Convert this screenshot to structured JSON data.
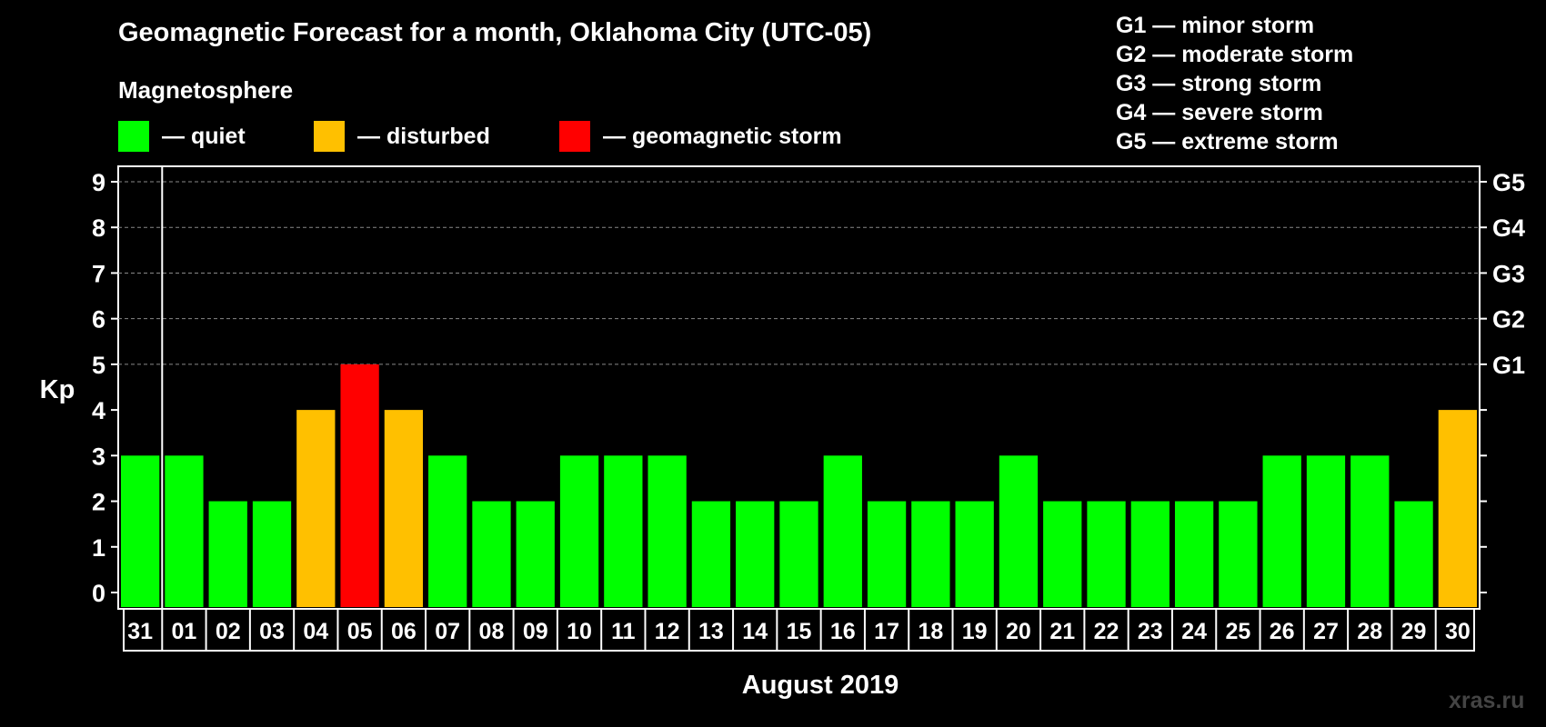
{
  "chart_data": {
    "type": "bar",
    "title": "Geomagnetic Forecast for a month, Oklahoma City (UTC-05)",
    "subtitle": "Magnetosphere",
    "xlabel": "August 2019",
    "ylabel": "Kp",
    "ylim": [
      0,
      9
    ],
    "yticks": [
      "0",
      "1",
      "2",
      "3",
      "4",
      "5",
      "6",
      "7",
      "8",
      "9"
    ],
    "right_axis_labels": [
      {
        "kp": 5,
        "label": "G1"
      },
      {
        "kp": 6,
        "label": "G2"
      },
      {
        "kp": 7,
        "label": "G3"
      },
      {
        "kp": 8,
        "label": "G4"
      },
      {
        "kp": 9,
        "label": "G5"
      }
    ],
    "categories": [
      "31",
      "01",
      "02",
      "03",
      "04",
      "05",
      "06",
      "07",
      "08",
      "09",
      "10",
      "11",
      "12",
      "13",
      "14",
      "15",
      "16",
      "17",
      "18",
      "19",
      "20",
      "21",
      "22",
      "23",
      "24",
      "25",
      "26",
      "27",
      "28",
      "29",
      "30"
    ],
    "values": [
      3,
      3,
      2,
      2,
      4,
      5,
      4,
      3,
      2,
      2,
      3,
      3,
      3,
      2,
      2,
      2,
      3,
      2,
      2,
      2,
      3,
      2,
      2,
      2,
      2,
      2,
      3,
      3,
      3,
      2,
      4
    ],
    "legend": [
      {
        "label": "— quiet",
        "color": "#00ff00"
      },
      {
        "label": "— disturbed",
        "color": "#ffc000"
      },
      {
        "label": "— geomagnetic storm",
        "color": "#ff0000"
      }
    ],
    "storm_scale": [
      "G1 — minor storm",
      "G2 — moderate storm",
      "G3 — strong storm",
      "G4 — severe storm",
      "G5 — extreme storm"
    ],
    "grid": true
  },
  "watermark": "xras.ru"
}
